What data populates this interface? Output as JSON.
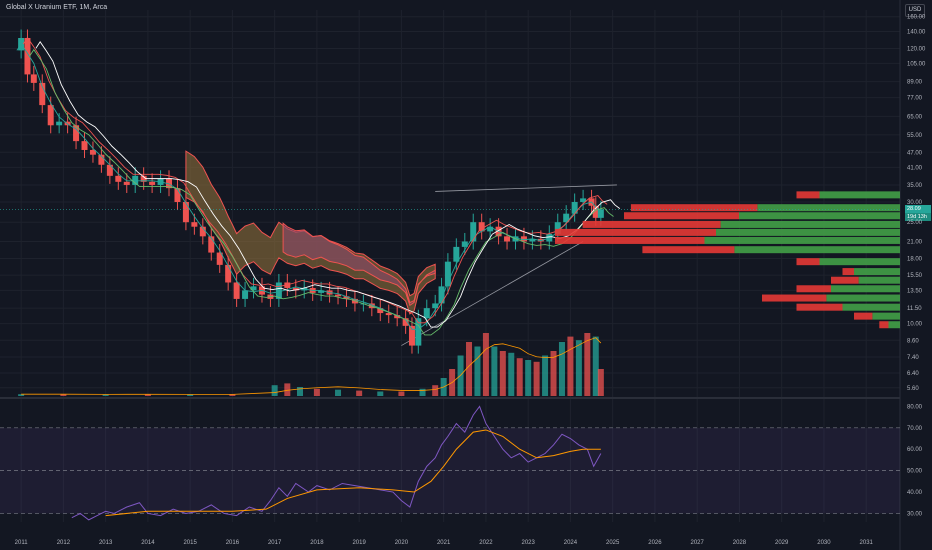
{
  "header": {
    "symbol_title": "Global X Uranium ETF, 1M, Arca",
    "currency_button": "USD"
  },
  "price_tags": {
    "last_price": "28.09",
    "countdown": "19d 13h"
  },
  "colors": {
    "up": "#26a69a",
    "down": "#ef5350",
    "background": "#131722",
    "rsi_line": "#7e57c2",
    "rsi_ma": "#ff9800",
    "volume_ma": "#ff9800"
  },
  "chart_data": [
    {
      "type": "candlestick",
      "pane": "price",
      "scale": "log",
      "y_ticks": [
        160,
        140,
        120,
        105,
        89,
        77,
        65,
        55,
        47,
        41,
        35,
        30,
        25,
        21,
        18,
        15.5,
        13.5,
        11.5,
        10,
        8.6,
        7.4,
        6.4,
        5.6
      ],
      "y_tick_labels": [
        "160.00",
        "140.00",
        "120.00",
        "105.00",
        "89.00",
        "77.00",
        "65.00",
        "55.00",
        "47.00",
        "41.00",
        "35.00",
        "30.00",
        "25.00",
        "21.00",
        "18.00",
        "15.50",
        "13.50",
        "11.50",
        "10.00",
        "8.60",
        "7.40",
        "6.40",
        "5.60"
      ],
      "x_tick_labels": [
        "2011",
        "2012",
        "2013",
        "2014",
        "2015",
        "2016",
        "2017",
        "2018",
        "2019",
        "2020",
        "2021",
        "2022",
        "2023",
        "2024",
        "2025",
        "2026",
        "2027",
        "2028",
        "2029",
        "2030",
        "2031"
      ],
      "x_range": [
        2010.5,
        2031.8
      ],
      "y_range": [
        5.2,
        170
      ],
      "close_series": [
        [
          2010.9,
          118
        ],
        [
          2011.0,
          132
        ],
        [
          2011.15,
          95
        ],
        [
          2011.3,
          88
        ],
        [
          2011.5,
          72
        ],
        [
          2011.7,
          60
        ],
        [
          2011.9,
          62
        ],
        [
          2012.1,
          60
        ],
        [
          2012.3,
          52
        ],
        [
          2012.5,
          48
        ],
        [
          2012.7,
          46
        ],
        [
          2012.9,
          42
        ],
        [
          2013.1,
          38
        ],
        [
          2013.3,
          36
        ],
        [
          2013.5,
          35
        ],
        [
          2013.7,
          38
        ],
        [
          2013.9,
          36
        ],
        [
          2014.1,
          35
        ],
        [
          2014.3,
          37
        ],
        [
          2014.5,
          34
        ],
        [
          2014.7,
          30
        ],
        [
          2014.9,
          25
        ],
        [
          2015.1,
          24
        ],
        [
          2015.3,
          22
        ],
        [
          2015.5,
          19
        ],
        [
          2015.7,
          17
        ],
        [
          2015.9,
          14.5
        ],
        [
          2016.1,
          12.5
        ],
        [
          2016.3,
          13.5
        ],
        [
          2016.5,
          14
        ],
        [
          2016.7,
          13
        ],
        [
          2016.9,
          12.5
        ],
        [
          2017.1,
          14.5
        ],
        [
          2017.3,
          13.8
        ],
        [
          2017.5,
          13.5
        ],
        [
          2017.7,
          13.8
        ],
        [
          2017.9,
          13.2
        ],
        [
          2018.1,
          13.5
        ],
        [
          2018.3,
          13
        ],
        [
          2018.5,
          12.8
        ],
        [
          2018.7,
          12.5
        ],
        [
          2018.9,
          12
        ],
        [
          2019.1,
          12
        ],
        [
          2019.3,
          11.5
        ],
        [
          2019.5,
          11
        ],
        [
          2019.7,
          10.8
        ],
        [
          2019.9,
          10.5
        ],
        [
          2020.1,
          9.8
        ],
        [
          2020.25,
          8.2
        ],
        [
          2020.4,
          10.5
        ],
        [
          2020.6,
          11.5
        ],
        [
          2020.8,
          12
        ],
        [
          2020.95,
          14
        ],
        [
          2021.1,
          17.5
        ],
        [
          2021.3,
          20
        ],
        [
          2021.5,
          21
        ],
        [
          2021.7,
          25
        ],
        [
          2021.9,
          23
        ],
        [
          2022.1,
          24
        ],
        [
          2022.3,
          22
        ],
        [
          2022.5,
          21
        ],
        [
          2022.7,
          22
        ],
        [
          2022.9,
          21
        ],
        [
          2023.1,
          21.5
        ],
        [
          2023.3,
          21
        ],
        [
          2023.5,
          22.5
        ],
        [
          2023.7,
          25
        ],
        [
          2023.9,
          27
        ],
        [
          2024.1,
          30
        ],
        [
          2024.3,
          31
        ],
        [
          2024.5,
          29
        ],
        [
          2024.6,
          26
        ],
        [
          2024.72,
          28.09
        ]
      ],
      "bands": [
        {
          "from": 2014.9,
          "to": 2020.8,
          "color": "#8d6e3a"
        },
        {
          "from": 2017.2,
          "to": 2020.8,
          "color": "#8e4a6a"
        }
      ],
      "trendlines": [
        {
          "from": [
            2020.0,
            8.2
          ],
          "to": [
            2024.3,
            21
          ]
        },
        {
          "from": [
            2020.8,
            33
          ],
          "to": [
            2025.1,
            35
          ]
        }
      ],
      "volume_profile": [
        {
          "price": 32,
          "up": 0.35,
          "down": 0.1
        },
        {
          "price": 28.5,
          "up": 0.62,
          "down": 0.55
        },
        {
          "price": 26.5,
          "up": 0.7,
          "down": 0.5
        },
        {
          "price": 24.5,
          "up": 0.78,
          "down": 0.6
        },
        {
          "price": 22.8,
          "up": 0.8,
          "down": 0.7
        },
        {
          "price": 21.2,
          "up": 0.85,
          "down": 0.65
        },
        {
          "price": 19.5,
          "up": 0.72,
          "down": 0.4
        },
        {
          "price": 17.5,
          "up": 0.35,
          "down": 0.1
        },
        {
          "price": 16,
          "up": 0.2,
          "down": 0.05
        },
        {
          "price": 14.8,
          "up": 0.18,
          "down": 0.12
        },
        {
          "price": 13.7,
          "up": 0.3,
          "down": 0.15
        },
        {
          "price": 12.6,
          "up": 0.32,
          "down": 0.28
        },
        {
          "price": 11.6,
          "up": 0.25,
          "down": 0.2
        },
        {
          "price": 10.7,
          "up": 0.12,
          "down": 0.08
        },
        {
          "price": 9.9,
          "up": 0.05,
          "down": 0.04
        }
      ]
    },
    {
      "type": "bar",
      "pane": "volume",
      "series_note_removed": true,
      "values_relative": [
        [
          2011,
          0.02
        ],
        [
          2012,
          0.02
        ],
        [
          2013,
          0.015
        ],
        [
          2014,
          0.02
        ],
        [
          2015,
          0.015
        ],
        [
          2016,
          0.02
        ],
        [
          2017,
          0.12
        ],
        [
          2017.3,
          0.14
        ],
        [
          2017.6,
          0.1
        ],
        [
          2018,
          0.08
        ],
        [
          2018.5,
          0.07
        ],
        [
          2019,
          0.06
        ],
        [
          2019.5,
          0.05
        ],
        [
          2020,
          0.05
        ],
        [
          2020.5,
          0.08
        ],
        [
          2020.8,
          0.12
        ],
        [
          2021.0,
          0.2
        ],
        [
          2021.2,
          0.3
        ],
        [
          2021.4,
          0.45
        ],
        [
          2021.6,
          0.6
        ],
        [
          2021.8,
          0.55
        ],
        [
          2022.0,
          0.7
        ],
        [
          2022.2,
          0.55
        ],
        [
          2022.4,
          0.5
        ],
        [
          2022.6,
          0.48
        ],
        [
          2022.8,
          0.42
        ],
        [
          2023.0,
          0.4
        ],
        [
          2023.2,
          0.38
        ],
        [
          2023.4,
          0.45
        ],
        [
          2023.6,
          0.5
        ],
        [
          2023.8,
          0.6
        ],
        [
          2024.0,
          0.66
        ],
        [
          2024.2,
          0.62
        ],
        [
          2024.4,
          0.7
        ],
        [
          2024.6,
          0.66
        ],
        [
          2024.72,
          0.3
        ]
      ]
    },
    {
      "type": "line",
      "pane": "rsi",
      "y_ticks": [
        80,
        70,
        60,
        50,
        40,
        30
      ],
      "y_tick_labels": [
        "80.00",
        "70.00",
        "60.00",
        "50.00",
        "40.00",
        "30.00"
      ],
      "y_range": [
        26,
        83
      ],
      "overbought": 70,
      "oversold": 30,
      "series": [
        {
          "values": [
            [
              2012.2,
              28
            ],
            [
              2012.4,
              30
            ],
            [
              2012.6,
              27
            ],
            [
              2012.8,
              29
            ],
            [
              2013.0,
              31
            ],
            [
              2013.2,
              30
            ],
            [
              2013.5,
              33
            ],
            [
              2013.8,
              35
            ],
            [
              2014.0,
              30
            ],
            [
              2014.3,
              29
            ],
            [
              2014.6,
              32
            ],
            [
              2014.9,
              30
            ],
            [
              2015.2,
              31
            ],
            [
              2015.5,
              34
            ],
            [
              2015.8,
              30
            ],
            [
              2016.1,
              29
            ],
            [
              2016.4,
              33
            ],
            [
              2016.7,
              31
            ],
            [
              2016.9,
              36
            ],
            [
              2017.1,
              42
            ],
            [
              2017.3,
              38
            ],
            [
              2017.5,
              44
            ],
            [
              2017.8,
              40
            ],
            [
              2018.0,
              43
            ],
            [
              2018.3,
              41
            ],
            [
              2018.6,
              44
            ],
            [
              2018.9,
              43
            ],
            [
              2019.2,
              42
            ],
            [
              2019.5,
              41
            ],
            [
              2019.8,
              40
            ],
            [
              2020.0,
              36
            ],
            [
              2020.2,
              33
            ],
            [
              2020.4,
              45
            ],
            [
              2020.6,
              52
            ],
            [
              2020.8,
              56
            ],
            [
              2020.95,
              62
            ],
            [
              2021.1,
              66
            ],
            [
              2021.3,
              72
            ],
            [
              2021.5,
              68
            ],
            [
              2021.7,
              76
            ],
            [
              2021.85,
              80
            ],
            [
              2022.0,
              72
            ],
            [
              2022.2,
              66
            ],
            [
              2022.4,
              60
            ],
            [
              2022.6,
              56
            ],
            [
              2022.8,
              58
            ],
            [
              2023.0,
              54
            ],
            [
              2023.2,
              56
            ],
            [
              2023.4,
              58
            ],
            [
              2023.6,
              62
            ],
            [
              2023.8,
              67
            ],
            [
              2024.0,
              65
            ],
            [
              2024.2,
              62
            ],
            [
              2024.4,
              60
            ],
            [
              2024.55,
              52
            ],
            [
              2024.72,
              58
            ]
          ]
        },
        {
          "values": [
            [
              2013.0,
              29
            ],
            [
              2014.0,
              31
            ],
            [
              2015.0,
              31
            ],
            [
              2016.0,
              31
            ],
            [
              2016.8,
              32
            ],
            [
              2017.3,
              37
            ],
            [
              2018.0,
              41
            ],
            [
              2019.0,
              42
            ],
            [
              2019.8,
              41
            ],
            [
              2020.3,
              40
            ],
            [
              2020.7,
              45
            ],
            [
              2021.0,
              52
            ],
            [
              2021.3,
              60
            ],
            [
              2021.7,
              68
            ],
            [
              2022.0,
              69
            ],
            [
              2022.4,
              66
            ],
            [
              2022.8,
              60
            ],
            [
              2023.2,
              56
            ],
            [
              2023.6,
              57
            ],
            [
              2024.0,
              59
            ],
            [
              2024.3,
              60
            ],
            [
              2024.72,
              60
            ]
          ]
        }
      ]
    }
  ]
}
